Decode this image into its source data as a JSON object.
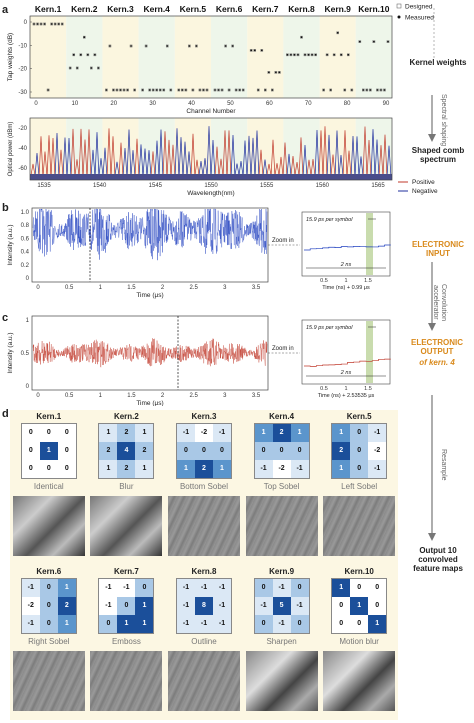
{
  "panel_a": {
    "letter": "a",
    "kernel_headers": [
      "Kern.1",
      "Kern.2",
      "Kern.3",
      "Kern.4",
      "Kern.5",
      "Kern.6",
      "Kern.7",
      "Kern.8",
      "Kern.9",
      "Kern.10"
    ],
    "weights_plot": {
      "ylabel": "Tap weights (dB)",
      "xlabel": "Channel Number",
      "yticks": [
        "0",
        "-10",
        "-20",
        "-30"
      ],
      "xticks": [
        "0",
        "10",
        "20",
        "30",
        "40",
        "50",
        "60",
        "70",
        "80",
        "90"
      ],
      "legend": [
        "Designed",
        "Measured"
      ]
    },
    "spectrum_plot": {
      "ylabel": "Optical power (dBm)",
      "xlabel": "Wavelength(nm)",
      "yticks": [
        "-20",
        "-40",
        "-60"
      ],
      "xticks": [
        "1535",
        "1540",
        "1545",
        "1550",
        "1555",
        "1560",
        "1565"
      ],
      "legend": [
        "Positive",
        "Negative"
      ]
    }
  },
  "side_labels": {
    "kernel_weights": "Kernel weights",
    "spectral_shaping": "Spectral shaping",
    "shaped_comb": "Shaped comb spectrum",
    "electronic_input": "ELECTRONIC INPUT",
    "convolution": "Convolution accelerator",
    "electronic_output_1": "ELECTRONIC OUTPUT",
    "electronic_output_2": "of kern. 4",
    "resample": "Resample",
    "output": "Output 10 convolved feature maps"
  },
  "panel_b": {
    "letter": "b",
    "ylabel": "Intensity (a.u.)",
    "xlabel": "Time (μs)",
    "yticks": [
      "1.0",
      "0.8",
      "0.6",
      "0.4",
      "0.2",
      "0"
    ],
    "xticks": [
      "0",
      "0.5",
      "1",
      "1.5",
      "2",
      "2.5",
      "3",
      "3.5"
    ],
    "zoom": "Zoom in",
    "inset_note": "15.9 ps per symbol",
    "inset_span": "2 ns",
    "inset_xlabel": "Time (ns) + 0.99 μs",
    "inset_xticks": [
      "0.5",
      "1",
      "1.5"
    ]
  },
  "panel_c": {
    "letter": "c",
    "ylabel": "Intensity (a.u.)",
    "xlabel": "Time (μs)",
    "yticks": [
      "1",
      "0.5",
      "0"
    ],
    "xticks": [
      "0",
      "0.5",
      "1",
      "1.5",
      "2",
      "2.5",
      "3",
      "3.5"
    ],
    "zoom": "Zoom in",
    "inset_note": "15.9 ps per symbol",
    "inset_span": "2 ns",
    "inset_xlabel": "Time (ns) + 2.53535 μs",
    "inset_xticks": [
      "0.5",
      "1",
      "1.5"
    ]
  },
  "panel_d": {
    "letter": "d",
    "kernels": [
      {
        "title": "Kern.1",
        "name": "Identical",
        "cells": [
          "0",
          "0",
          "0",
          "0",
          "1",
          "0",
          "0",
          "0",
          "0"
        ],
        "shade": [
          0,
          0,
          0,
          0,
          4,
          0,
          0,
          0,
          0
        ]
      },
      {
        "title": "Kern.2",
        "name": "Blur",
        "cells": [
          "1",
          "2",
          "1",
          "2",
          "4",
          "2",
          "1",
          "2",
          "1"
        ],
        "shade": [
          1,
          2,
          1,
          2,
          4,
          2,
          1,
          2,
          1
        ]
      },
      {
        "title": "Kern.3",
        "name": "Bottom Sobel",
        "cells": [
          "-1",
          "-2",
          "-1",
          "0",
          "0",
          "0",
          "1",
          "2",
          "1"
        ],
        "shade": [
          1,
          0,
          1,
          2,
          2,
          2,
          3,
          4,
          3
        ]
      },
      {
        "title": "Kern.4",
        "name": "Top Sobel",
        "cells": [
          "1",
          "2",
          "1",
          "0",
          "0",
          "0",
          "-1",
          "-2",
          "-1"
        ],
        "shade": [
          3,
          4,
          3,
          2,
          2,
          2,
          1,
          0,
          1
        ]
      },
      {
        "title": "Kern.5",
        "name": "Left Sobel",
        "cells": [
          "1",
          "0",
          "-1",
          "2",
          "0",
          "-2",
          "1",
          "0",
          "-1"
        ],
        "shade": [
          3,
          2,
          1,
          4,
          2,
          0,
          3,
          2,
          1
        ]
      },
      {
        "title": "Kern.6",
        "name": "Right Sobel",
        "cells": [
          "-1",
          "0",
          "1",
          "-2",
          "0",
          "2",
          "-1",
          "0",
          "1"
        ],
        "shade": [
          1,
          2,
          3,
          0,
          2,
          4,
          1,
          2,
          3
        ]
      },
      {
        "title": "Kern.7",
        "name": "Emboss",
        "cells": [
          "-1",
          "-1",
          "0",
          "-1",
          "0",
          "1",
          "0",
          "1",
          "1"
        ],
        "shade": [
          0,
          0,
          2,
          0,
          2,
          4,
          2,
          4,
          4
        ]
      },
      {
        "title": "Kern.8",
        "name": "Outline",
        "cells": [
          "-1",
          "-1",
          "-1",
          "-1",
          "8",
          "-1",
          "-1",
          "-1",
          "-1"
        ],
        "shade": [
          1,
          1,
          1,
          1,
          4,
          1,
          1,
          1,
          1
        ]
      },
      {
        "title": "Kern.9",
        "name": "Sharpen",
        "cells": [
          "0",
          "-1",
          "0",
          "-1",
          "5",
          "-1",
          "0",
          "-1",
          "0"
        ],
        "shade": [
          2,
          1,
          2,
          1,
          4,
          1,
          2,
          1,
          2
        ]
      },
      {
        "title": "Kern.10",
        "name": "Motion blur",
        "cells": [
          "1",
          "0",
          "0",
          "0",
          "1",
          "0",
          "0",
          "0",
          "1"
        ],
        "shade": [
          4,
          0,
          0,
          0,
          4,
          0,
          0,
          0,
          4
        ]
      }
    ]
  }
}
